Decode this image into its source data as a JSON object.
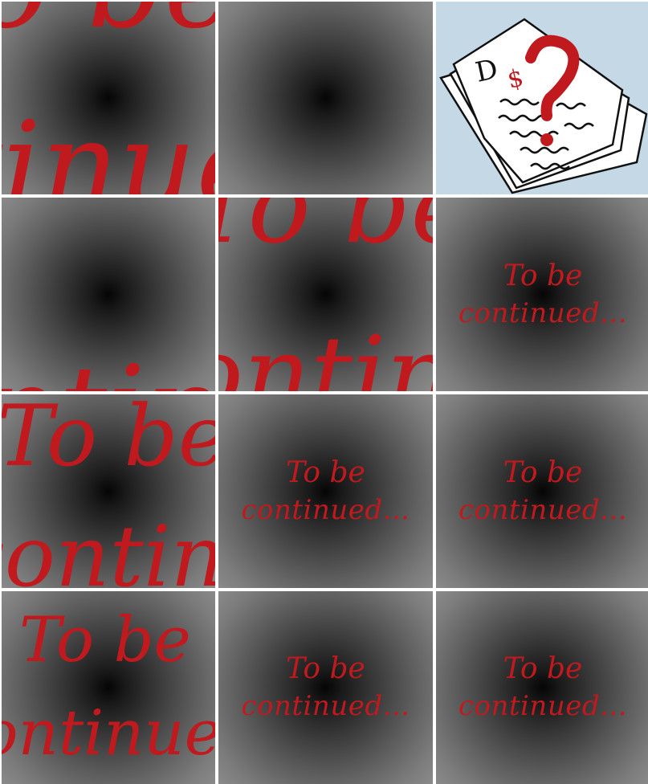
{
  "tiles": {
    "caption_line1": "To be",
    "caption_line2": "continued...",
    "zoom_frag_a_top": "To be",
    "zoom_frag_a_bottom": "continued...",
    "zoom_frag_b_top": "To be",
    "zoom_frag_b_bottom": "continued...",
    "zoom_frag_c_top": "To be",
    "zoom_frag_c_bottom": "continued...",
    "zoom_frag_d_top": "To be",
    "zoom_frag_d_bottom": "continued..."
  },
  "illustration": {
    "icon": "document-question-icon"
  },
  "colors": {
    "script_red": "#c01a1f",
    "illustration_bg": "#c4d8e6"
  }
}
